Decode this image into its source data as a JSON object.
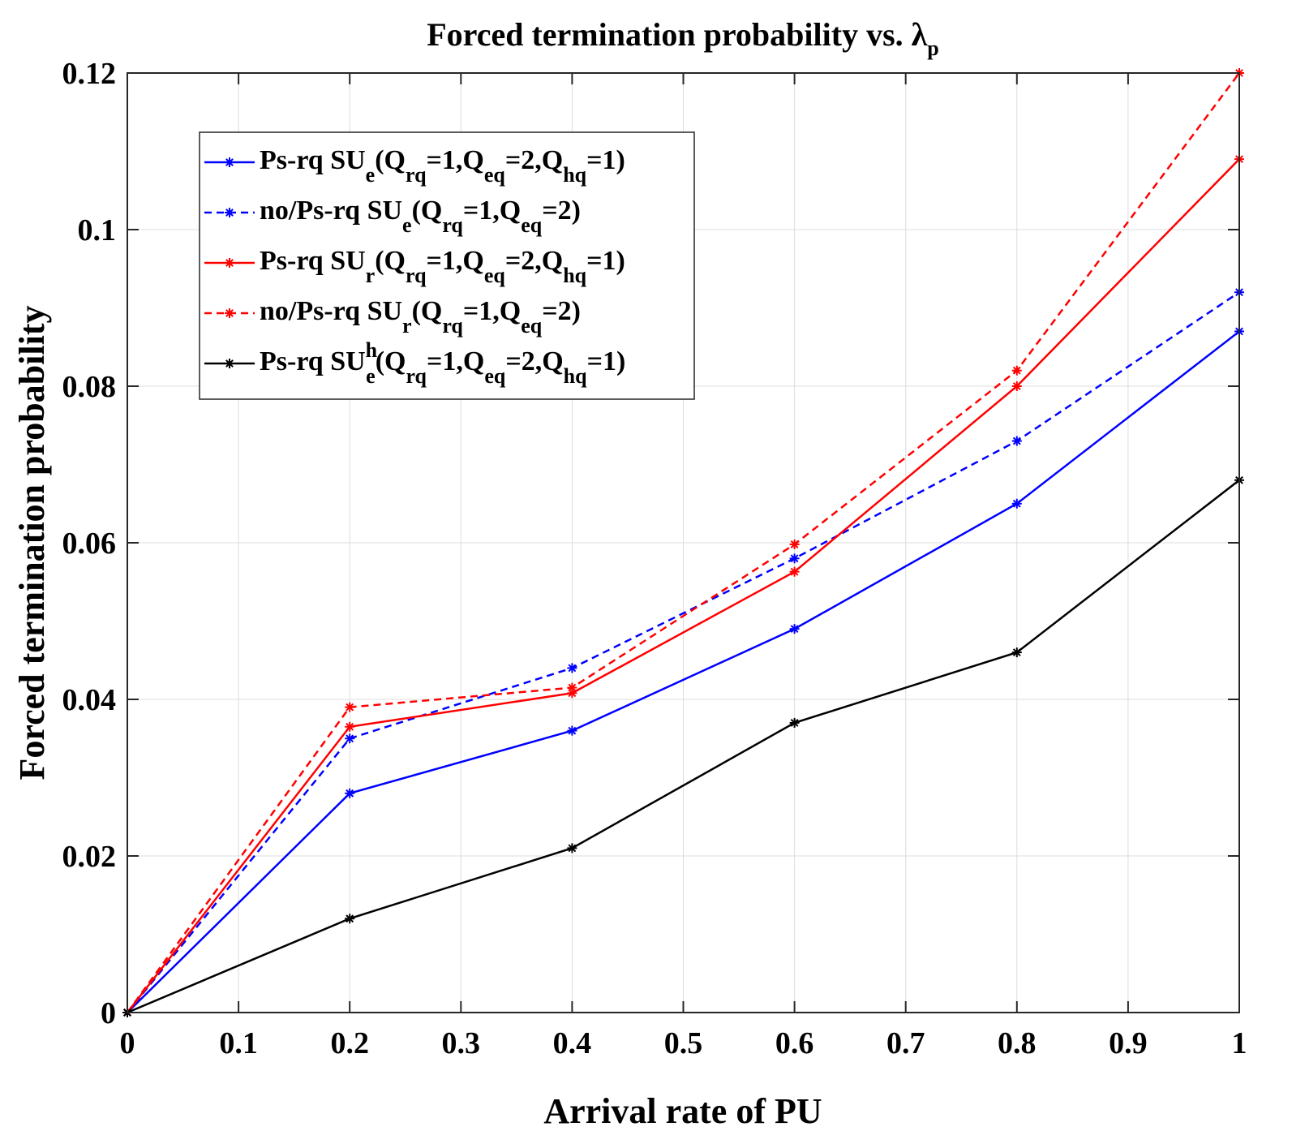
{
  "chart_data": {
    "type": "line",
    "title": "Forced termination probability vs. λ",
    "title_subscript": "p",
    "xlabel": "Arrival rate of PU",
    "ylabel": "Forced termination probability",
    "xlim": [
      0,
      1
    ],
    "ylim": [
      0,
      0.12
    ],
    "x_ticks": [
      "0",
      "0.1",
      "0.2",
      "0.3",
      "0.4",
      "0.5",
      "0.6",
      "0.7",
      "0.8",
      "0.9",
      "1"
    ],
    "y_ticks": [
      "0",
      "0.02",
      "0.04",
      "0.06",
      "0.08",
      "0.1",
      "0.12"
    ],
    "grid": true,
    "legend_position": "top-left",
    "x": [
      0,
      0.2,
      0.4,
      0.6,
      0.8,
      1.0
    ],
    "series": [
      {
        "name": "Ps-rq SUe(Qrq=1,Qeq=2,Qhq=1)",
        "label": {
          "base": "Ps-rq SU",
          "sub": "e",
          "sup": "",
          "params": [
            [
              "(Q",
              "rq"
            ],
            [
              "=1,Q",
              "eq"
            ],
            [
              "=2,Q",
              "hq"
            ]
          ],
          "tail": "=1)"
        },
        "color": "#0000ff",
        "dash": "solid",
        "values": [
          0,
          0.028,
          0.036,
          0.049,
          0.065,
          0.087
        ]
      },
      {
        "name": "no/Ps-rq SUe(Qrq=1,Qeq=2)",
        "label": {
          "base": "no/Ps-rq SU",
          "sub": "e",
          "sup": "",
          "params": [
            [
              "(Q",
              "rq"
            ],
            [
              "=1,Q",
              "eq"
            ]
          ],
          "tail": "=2)"
        },
        "color": "#0000ff",
        "dash": "dashed",
        "values": [
          0,
          0.035,
          0.044,
          0.058,
          0.073,
          0.092
        ]
      },
      {
        "name": "Ps-rq SUr(Qrq=1,Qeq=2,Qhq=1)",
        "label": {
          "base": "Ps-rq SU",
          "sub": "r",
          "sup": "",
          "params": [
            [
              "(Q",
              "rq"
            ],
            [
              "=1,Q",
              "eq"
            ],
            [
              "=2,Q",
              "hq"
            ]
          ],
          "tail": "=1)"
        },
        "color": "#ff0000",
        "dash": "solid",
        "values": [
          0,
          0.0365,
          0.0408,
          0.0563,
          0.08,
          0.109
        ]
      },
      {
        "name": "no/Ps-rq SUr(Qrq=1,Qeq=2)",
        "label": {
          "base": "no/Ps-rq SU",
          "sub": "r",
          "sup": "",
          "params": [
            [
              "(Q",
              "rq"
            ],
            [
              "=1,Q",
              "eq"
            ]
          ],
          "tail": "=2)"
        },
        "color": "#ff0000",
        "dash": "dashed",
        "values": [
          0,
          0.039,
          0.0415,
          0.0598,
          0.082,
          0.12
        ]
      },
      {
        "name": "Ps-rq SUe^h(Qrq=1,Qeq=2,Qhq=1)",
        "label": {
          "base": "Ps-rq SU",
          "sub": "e",
          "sup": "h",
          "params": [
            [
              "(Q",
              "rq"
            ],
            [
              "=1,Q",
              "eq"
            ],
            [
              "=2,Q",
              "hq"
            ]
          ],
          "tail": "=1)"
        },
        "color": "#000000",
        "dash": "solid",
        "values": [
          0,
          0.012,
          0.021,
          0.037,
          0.046,
          0.068
        ]
      }
    ]
  }
}
